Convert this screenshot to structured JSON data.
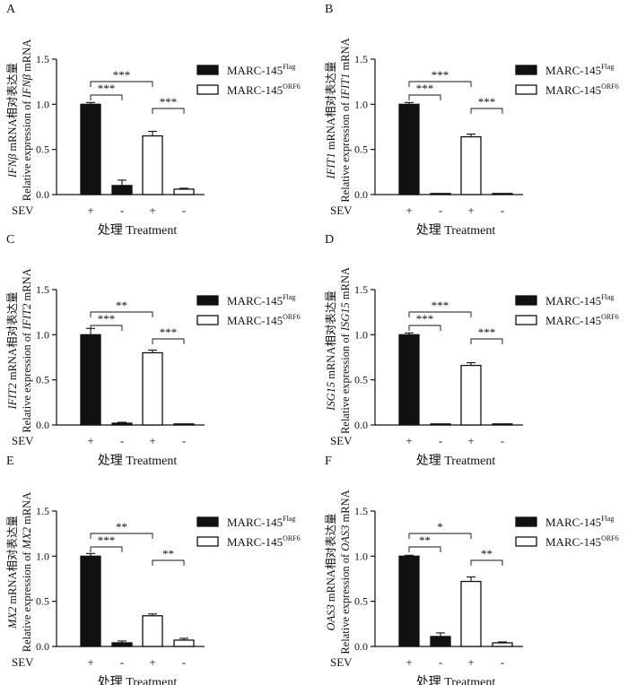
{
  "chart_data": [
    {
      "type": "bar",
      "panel_label": "A",
      "ylabel_gene": "IFNβ",
      "ylabel_line1_suffix": " mRNA相对表达量",
      "ylabel_line2_prefix": "Relative expression of ",
      "ylabel_line2_suffix": " mRNA",
      "xlabel": "处理 Treatment",
      "row_label": "SEV",
      "categories": [
        "+",
        "-",
        "+",
        "-"
      ],
      "values": [
        1.0,
        0.1,
        0.65,
        0.06
      ],
      "errors": [
        0.02,
        0.06,
        0.05,
        0.01
      ],
      "filled": [
        true,
        true,
        false,
        false
      ],
      "ylim": [
        0,
        1.5
      ],
      "yticks": [
        "0.0",
        "0.5",
        "1.0",
        "1.5"
      ],
      "legend": [
        {
          "base": "MARC-145",
          "sup": "Flag",
          "style": "filled"
        },
        {
          "base": "MARC-145",
          "sup": "ORF6",
          "style": "open"
        }
      ],
      "brackets": [
        {
          "from": 0,
          "to": 1,
          "label": "***"
        },
        {
          "from": 0,
          "to": 2,
          "label": "***"
        },
        {
          "from": 2,
          "to": 3,
          "label": "***"
        }
      ]
    },
    {
      "type": "bar",
      "panel_label": "B",
      "ylabel_gene": "IFIT1",
      "ylabel_line1_suffix": " mRNA相对表达量",
      "ylabel_line2_prefix": "Relative expression of ",
      "ylabel_line2_suffix": " mRNA",
      "xlabel": "处理 Treatment",
      "row_label": "SEV",
      "categories": [
        "+",
        "-",
        "+",
        "-"
      ],
      "values": [
        1.0,
        0.01,
        0.64,
        0.01
      ],
      "errors": [
        0.02,
        0.0,
        0.03,
        0.0
      ],
      "filled": [
        true,
        true,
        false,
        false
      ],
      "ylim": [
        0,
        1.5
      ],
      "yticks": [
        "0.0",
        "0.5",
        "1.0",
        "1.5"
      ],
      "legend": [
        {
          "base": "MARC-145",
          "sup": "Flag",
          "style": "filled"
        },
        {
          "base": "MARC-145",
          "sup": "ORF6",
          "style": "open"
        }
      ],
      "brackets": [
        {
          "from": 0,
          "to": 1,
          "label": "***"
        },
        {
          "from": 0,
          "to": 2,
          "label": "***"
        },
        {
          "from": 2,
          "to": 3,
          "label": "***"
        }
      ]
    },
    {
      "type": "bar",
      "panel_label": "C",
      "ylabel_gene": "IFIT2",
      "ylabel_line1_suffix": " mRNA相对表达量",
      "ylabel_line2_prefix": "Relative expression of ",
      "ylabel_line2_suffix": " mRNA",
      "xlabel": "处理 Treatment",
      "row_label": "SEV",
      "categories": [
        "+",
        "-",
        "+",
        "-"
      ],
      "values": [
        1.0,
        0.02,
        0.8,
        0.01
      ],
      "errors": [
        0.07,
        0.01,
        0.03,
        0.0
      ],
      "filled": [
        true,
        true,
        false,
        false
      ],
      "ylim": [
        0,
        1.5
      ],
      "yticks": [
        "0.0",
        "0.5",
        "1.0",
        "1.5"
      ],
      "legend": [
        {
          "base": "MARC-145",
          "sup": "Flag",
          "style": "filled"
        },
        {
          "base": "MARC-145",
          "sup": "ORF6",
          "style": "open"
        }
      ],
      "brackets": [
        {
          "from": 0,
          "to": 1,
          "label": "***"
        },
        {
          "from": 0,
          "to": 2,
          "label": "**"
        },
        {
          "from": 2,
          "to": 3,
          "label": "***"
        }
      ]
    },
    {
      "type": "bar",
      "panel_label": "D",
      "ylabel_gene": "ISG15",
      "ylabel_line1_suffix": " mRNA相对表达量",
      "ylabel_line2_prefix": "Relative expression of ",
      "ylabel_line2_suffix": " mRNA",
      "xlabel": "处理 Treatment",
      "row_label": "SEV",
      "categories": [
        "+",
        "-",
        "+",
        "-"
      ],
      "values": [
        1.0,
        0.0,
        0.66,
        0.0
      ],
      "errors": [
        0.02,
        0.0,
        0.03,
        0.0
      ],
      "filled": [
        true,
        true,
        false,
        false
      ],
      "ylim": [
        0,
        1.5
      ],
      "yticks": [
        "0.0",
        "0.5",
        "1.0",
        "1.5"
      ],
      "legend": [
        {
          "base": "MARC-145",
          "sup": "Flag",
          "style": "filled"
        },
        {
          "base": "MARC-145",
          "sup": "ORF6",
          "style": "open"
        }
      ],
      "brackets": [
        {
          "from": 0,
          "to": 1,
          "label": "***"
        },
        {
          "from": 0,
          "to": 2,
          "label": "***"
        },
        {
          "from": 2,
          "to": 3,
          "label": "***"
        }
      ]
    },
    {
      "type": "bar",
      "panel_label": "E",
      "ylabel_gene": "MX2",
      "ylabel_line1_suffix": " mRNA相对表达量",
      "ylabel_line2_prefix": "Relative expression of ",
      "ylabel_line2_suffix": " mRNA",
      "xlabel": "处理 Treatment",
      "row_label": "SEV",
      "categories": [
        "+",
        "-",
        "+",
        "-"
      ],
      "values": [
        1.0,
        0.04,
        0.34,
        0.07
      ],
      "errors": [
        0.03,
        0.02,
        0.02,
        0.02
      ],
      "filled": [
        true,
        true,
        false,
        false
      ],
      "ylim": [
        0,
        1.5
      ],
      "yticks": [
        "0.0",
        "0.5",
        "1.0",
        "1.5"
      ],
      "legend": [
        {
          "base": "MARC-145",
          "sup": "Flag",
          "style": "filled"
        },
        {
          "base": "MARC-145",
          "sup": "ORF6",
          "style": "open"
        }
      ],
      "brackets": [
        {
          "from": 0,
          "to": 1,
          "label": "***"
        },
        {
          "from": 0,
          "to": 2,
          "label": "**"
        },
        {
          "from": 2,
          "to": 3,
          "label": "**"
        }
      ]
    },
    {
      "type": "bar",
      "panel_label": "F",
      "ylabel_gene": "OAS3",
      "ylabel_line1_suffix": " mRNA相对表达量",
      "ylabel_line2_prefix": "Relative expression of ",
      "ylabel_line2_suffix": " mRNA",
      "xlabel": "处理 Treatment",
      "row_label": "SEV",
      "categories": [
        "+",
        "-",
        "+",
        "-"
      ],
      "values": [
        1.0,
        0.11,
        0.72,
        0.04
      ],
      "errors": [
        0.01,
        0.04,
        0.05,
        0.01
      ],
      "filled": [
        true,
        true,
        false,
        false
      ],
      "ylim": [
        0,
        1.5
      ],
      "yticks": [
        "0.0",
        "0.5",
        "1.0",
        "1.5"
      ],
      "legend": [
        {
          "base": "MARC-145",
          "sup": "Flag",
          "style": "filled"
        },
        {
          "base": "MARC-145",
          "sup": "ORF6",
          "style": "open"
        }
      ],
      "brackets": [
        {
          "from": 0,
          "to": 1,
          "label": "**"
        },
        {
          "from": 0,
          "to": 2,
          "label": "*"
        },
        {
          "from": 2,
          "to": 3,
          "label": "**"
        }
      ]
    }
  ]
}
